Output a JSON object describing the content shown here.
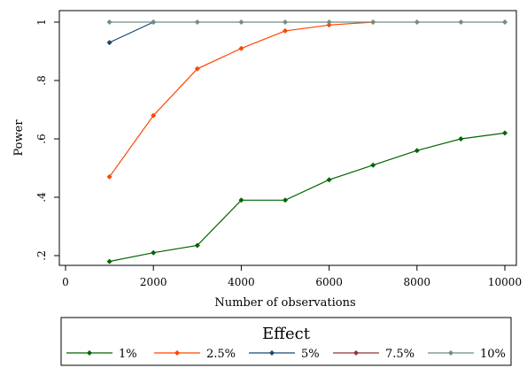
{
  "chart_data": {
    "type": "line",
    "ylabel": "Power",
    "xlabel": "Number of observations",
    "xlim": [
      0,
      10000
    ],
    "ylim": [
      0.16,
      1.02
    ],
    "x_ticks": [
      0,
      2000,
      4000,
      6000,
      8000,
      10000
    ],
    "x_tick_labels": [
      "0",
      "2000",
      "4000",
      "6000",
      "8000",
      "10000"
    ],
    "y_ticks": [
      0.2,
      0.4,
      0.6,
      0.8,
      1.0
    ],
    "y_tick_labels": [
      ".2",
      ".4",
      ".6",
      ".8",
      "1"
    ],
    "grid": false,
    "legend_title": "Effect",
    "legend_position": "bottom",
    "series": [
      {
        "name": "1%",
        "color": "#006400",
        "x": [
          1000,
          2000,
          3000,
          4000,
          5000,
          6000,
          7000,
          8000,
          9000,
          10000
        ],
        "values": [
          0.18,
          0.21,
          0.235,
          0.39,
          0.39,
          0.46,
          0.51,
          0.56,
          0.6,
          0.62
        ]
      },
      {
        "name": "2.5%",
        "color": "#ff4500",
        "x": [
          1000,
          2000,
          3000,
          4000,
          5000,
          6000,
          7000
        ],
        "values": [
          0.47,
          0.68,
          0.84,
          0.91,
          0.97,
          0.99,
          1.0
        ]
      },
      {
        "name": "5%",
        "color": "#1a476f",
        "x": [
          1000,
          2000
        ],
        "values": [
          0.93,
          1.0
        ]
      },
      {
        "name": "7.5%",
        "color": "#90353b",
        "x": [],
        "values": []
      },
      {
        "name": "10%",
        "color": "#6e8e84",
        "x": [
          1000,
          2000,
          3000,
          4000,
          5000,
          6000,
          7000,
          8000,
          9000,
          10000
        ],
        "values": [
          1.0,
          1.0,
          1.0,
          1.0,
          1.0,
          1.0,
          1.0,
          1.0,
          1.0,
          1.0
        ]
      }
    ]
  }
}
